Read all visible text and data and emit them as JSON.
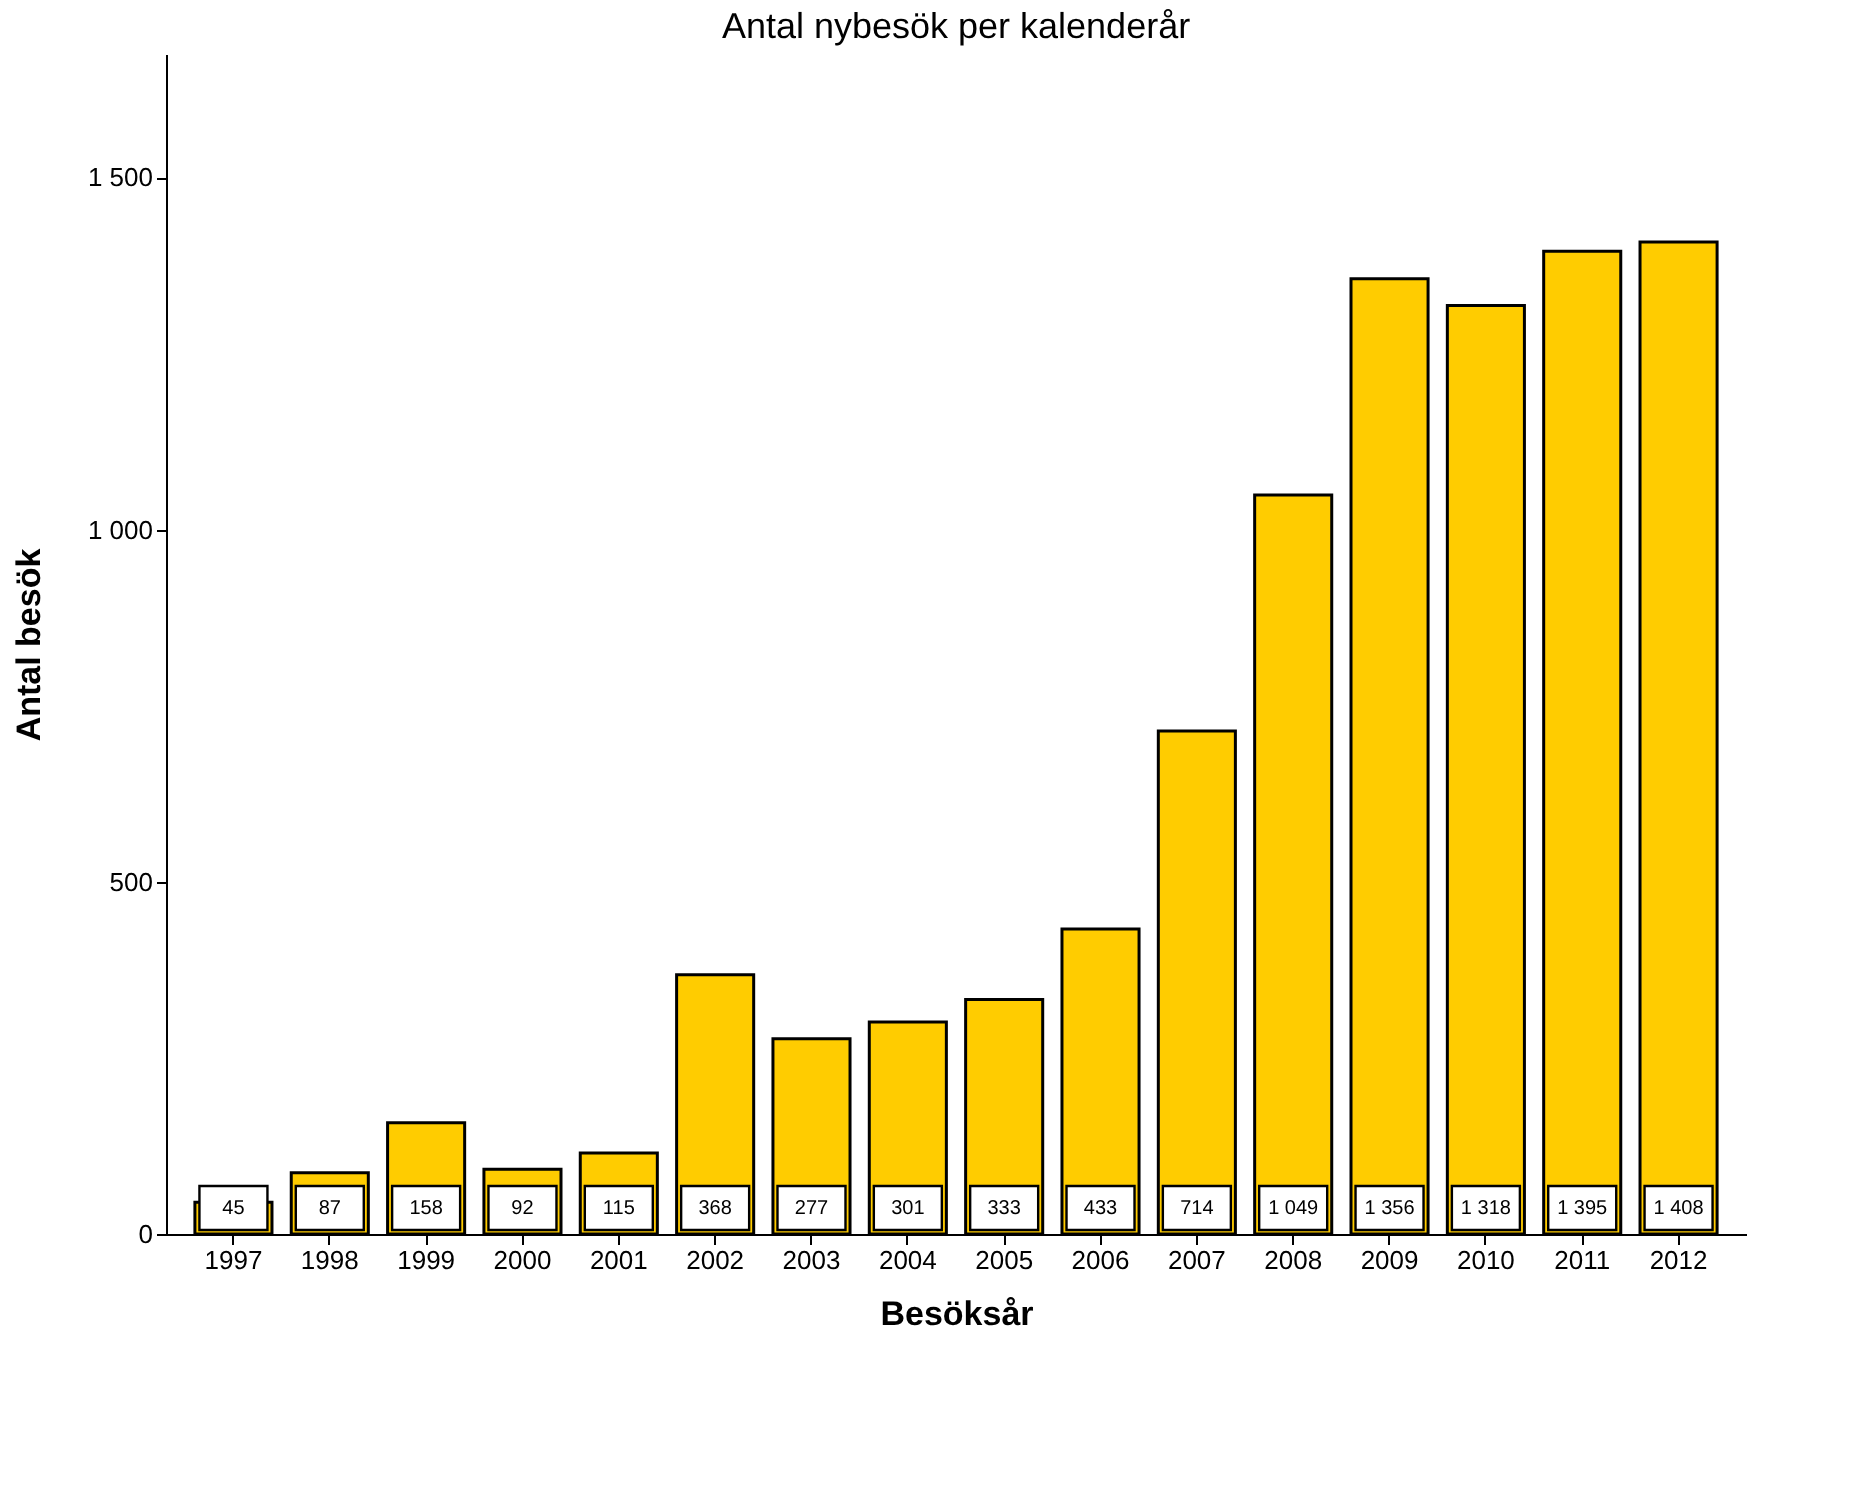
{
  "chart_data": {
    "type": "bar",
    "title": "Antal nybesök per kalenderår",
    "xlabel": "Besöksår",
    "ylabel": "Antal besök",
    "categories": [
      "1997",
      "1998",
      "1999",
      "2000",
      "2001",
      "2002",
      "2003",
      "2004",
      "2005",
      "2006",
      "2007",
      "2008",
      "2009",
      "2010",
      "2011",
      "2012"
    ],
    "values": [
      45,
      87,
      158,
      92,
      115,
      368,
      277,
      301,
      333,
      433,
      714,
      1049,
      1356,
      1318,
      1395,
      1408
    ],
    "value_labels": [
      "45",
      "87",
      "158",
      "92",
      "115",
      "368",
      "277",
      "301",
      "333",
      "433",
      "714",
      "1 049",
      "1 356",
      "1 318",
      "1 395",
      "1 408"
    ],
    "color": "#ffcc00",
    "ylim": [
      0,
      1675
    ],
    "yticks": [
      0,
      500,
      {
        "value": 1000,
        "label": "1 000"
      },
      {
        "value": 1500,
        "label": "1 500"
      }
    ],
    "grid": false
  }
}
